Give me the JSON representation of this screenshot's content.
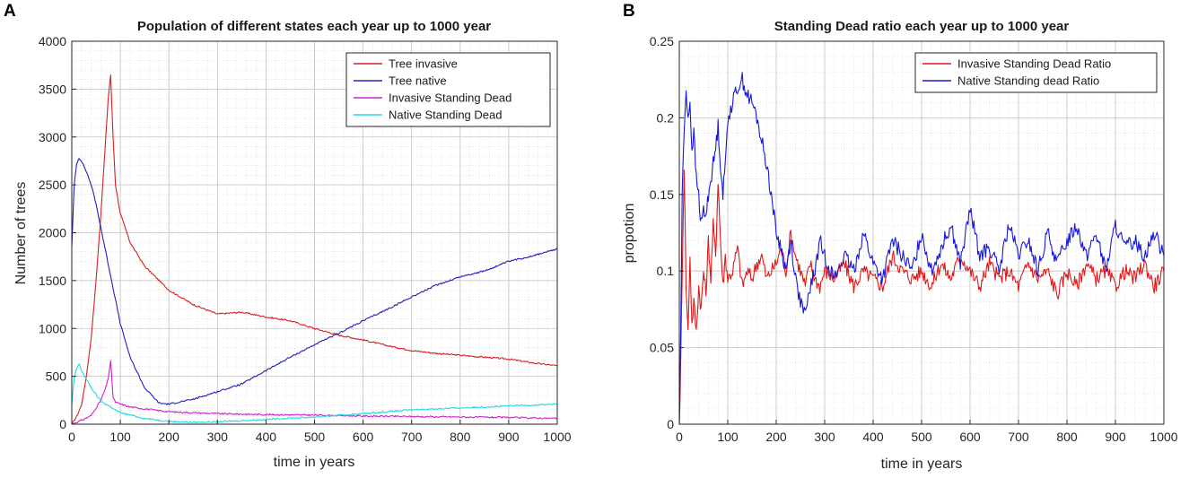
{
  "chart_data": [
    {
      "panel": "A",
      "type": "line",
      "title": "Population of different states each year up to 1000 year",
      "xlabel": "time in years",
      "ylabel": "Number of trees",
      "xlim": [
        0,
        1000
      ],
      "ylim": [
        0,
        4000
      ],
      "xticks": [
        0,
        100,
        200,
        300,
        400,
        500,
        600,
        700,
        800,
        900,
        1000
      ],
      "yticks": [
        0,
        500,
        1000,
        1500,
        2000,
        2500,
        3000,
        3500,
        4000
      ],
      "grid": true,
      "legend_position": "top-right",
      "series": [
        {
          "name": "Tree invasive",
          "color": "#d62020",
          "x": [
            0,
            10,
            20,
            30,
            40,
            50,
            60,
            70,
            75,
            80,
            85,
            90,
            100,
            120,
            150,
            200,
            250,
            300,
            350,
            400,
            450,
            500,
            550,
            600,
            650,
            700,
            750,
            800,
            850,
            900,
            950,
            1000
          ],
          "y": [
            0,
            80,
            200,
            500,
            900,
            1500,
            2200,
            3000,
            3400,
            3650,
            3000,
            2500,
            2200,
            1900,
            1650,
            1400,
            1250,
            1150,
            1170,
            1120,
            1080,
            1000,
            930,
            880,
            820,
            770,
            740,
            720,
            700,
            680,
            640,
            610
          ]
        },
        {
          "name": "Tree native",
          "color": "#2020c0",
          "x": [
            0,
            5,
            10,
            15,
            20,
            30,
            40,
            50,
            60,
            80,
            100,
            120,
            150,
            180,
            200,
            250,
            300,
            350,
            400,
            450,
            500,
            550,
            600,
            650,
            700,
            750,
            800,
            850,
            900,
            950,
            1000
          ],
          "y": [
            1850,
            2500,
            2720,
            2780,
            2750,
            2640,
            2500,
            2300,
            2050,
            1550,
            1050,
            700,
            380,
            220,
            210,
            260,
            340,
            420,
            560,
            700,
            830,
            950,
            1080,
            1200,
            1330,
            1450,
            1540,
            1600,
            1700,
            1760,
            1830
          ]
        },
        {
          "name": "Invasive Standing Dead",
          "color": "#d020d0",
          "x": [
            0,
            20,
            40,
            60,
            70,
            75,
            80,
            85,
            90,
            100,
            120,
            150,
            200,
            300,
            400,
            500,
            600,
            700,
            800,
            900,
            1000
          ],
          "y": [
            0,
            40,
            90,
            250,
            380,
            480,
            660,
            280,
            230,
            210,
            180,
            160,
            130,
            110,
            100,
            95,
            85,
            80,
            75,
            70,
            60
          ]
        },
        {
          "name": "Native Standing Dead",
          "color": "#20d8e8",
          "x": [
            0,
            5,
            10,
            15,
            20,
            30,
            40,
            60,
            80,
            100,
            150,
            200,
            250,
            300,
            400,
            500,
            600,
            700,
            800,
            900,
            1000
          ],
          "y": [
            200,
            480,
            580,
            630,
            560,
            470,
            380,
            240,
            180,
            120,
            60,
            30,
            20,
            25,
            50,
            75,
            110,
            150,
            170,
            190,
            210
          ]
        }
      ]
    },
    {
      "panel": "B",
      "type": "line",
      "title": "Standing Dead ratio each year up to 1000 year",
      "xlabel": "time in years",
      "ylabel": "propotion",
      "xlim": [
        0,
        1000
      ],
      "ylim": [
        0,
        0.25
      ],
      "xticks": [
        0,
        100,
        200,
        300,
        400,
        500,
        600,
        700,
        800,
        900,
        1000
      ],
      "yticks": [
        0,
        0.05,
        0.1,
        0.15,
        0.2,
        0.25
      ],
      "grid": true,
      "legend_position": "top-right",
      "series": [
        {
          "name": "Invasive Standing Dead Ratio",
          "color": "#e01818",
          "x": [
            0,
            3,
            6,
            10,
            14,
            18,
            22,
            26,
            30,
            35,
            40,
            45,
            50,
            55,
            60,
            65,
            70,
            75,
            80,
            85,
            90,
            95,
            100,
            110,
            120,
            130,
            140,
            150,
            160,
            170,
            180,
            190,
            200,
            210,
            220,
            230,
            240,
            250,
            260,
            270,
            280,
            290,
            300,
            320,
            340,
            360,
            380,
            400,
            420,
            440,
            460,
            480,
            500,
            520,
            540,
            560,
            580,
            600,
            620,
            640,
            660,
            680,
            700,
            720,
            740,
            760,
            780,
            800,
            820,
            840,
            860,
            880,
            900,
            920,
            940,
            960,
            980,
            1000
          ],
          "y": [
            0.0,
            0.04,
            0.1,
            0.17,
            0.09,
            0.06,
            0.11,
            0.065,
            0.08,
            0.06,
            0.09,
            0.075,
            0.1,
            0.085,
            0.12,
            0.095,
            0.13,
            0.11,
            0.16,
            0.12,
            0.09,
            0.11,
            0.095,
            0.1,
            0.115,
            0.09,
            0.1,
            0.095,
            0.105,
            0.11,
            0.095,
            0.1,
            0.105,
            0.115,
            0.1,
            0.125,
            0.11,
            0.1,
            0.09,
            0.105,
            0.095,
            0.09,
            0.1,
            0.095,
            0.105,
            0.09,
            0.1,
            0.095,
            0.09,
            0.11,
            0.1,
            0.095,
            0.1,
            0.09,
            0.105,
            0.095,
            0.11,
            0.1,
            0.09,
            0.105,
            0.095,
            0.1,
            0.09,
            0.105,
            0.095,
            0.1,
            0.085,
            0.1,
            0.09,
            0.105,
            0.095,
            0.1,
            0.09,
            0.1,
            0.095,
            0.105,
            0.09,
            0.1
          ]
        },
        {
          "name": "Native Standing dead Ratio",
          "color": "#1818d8",
          "x": [
            0,
            3,
            6,
            10,
            14,
            18,
            22,
            26,
            30,
            35,
            40,
            45,
            50,
            55,
            60,
            65,
            70,
            75,
            80,
            85,
            90,
            95,
            100,
            110,
            120,
            130,
            140,
            150,
            160,
            170,
            180,
            190,
            200,
            210,
            220,
            230,
            240,
            250,
            260,
            270,
            280,
            290,
            300,
            320,
            340,
            360,
            380,
            400,
            420,
            440,
            460,
            480,
            500,
            520,
            540,
            560,
            580,
            600,
            620,
            640,
            660,
            680,
            700,
            720,
            740,
            760,
            780,
            800,
            820,
            840,
            860,
            880,
            900,
            920,
            940,
            960,
            980,
            1000
          ],
          "y": [
            0.0,
            0.06,
            0.15,
            0.19,
            0.22,
            0.2,
            0.21,
            0.18,
            0.19,
            0.16,
            0.15,
            0.13,
            0.14,
            0.135,
            0.15,
            0.16,
            0.17,
            0.18,
            0.195,
            0.17,
            0.15,
            0.17,
            0.2,
            0.21,
            0.22,
            0.225,
            0.215,
            0.21,
            0.2,
            0.185,
            0.17,
            0.15,
            0.125,
            0.115,
            0.1,
            0.12,
            0.095,
            0.08,
            0.07,
            0.09,
            0.1,
            0.12,
            0.11,
            0.095,
            0.11,
            0.1,
            0.125,
            0.105,
            0.095,
            0.12,
            0.11,
            0.1,
            0.125,
            0.1,
            0.115,
            0.13,
            0.105,
            0.14,
            0.11,
            0.115,
            0.1,
            0.13,
            0.11,
            0.12,
            0.1,
            0.125,
            0.105,
            0.12,
            0.13,
            0.11,
            0.125,
            0.1,
            0.13,
            0.115,
            0.12,
            0.11,
            0.125,
            0.11
          ]
        }
      ]
    }
  ]
}
